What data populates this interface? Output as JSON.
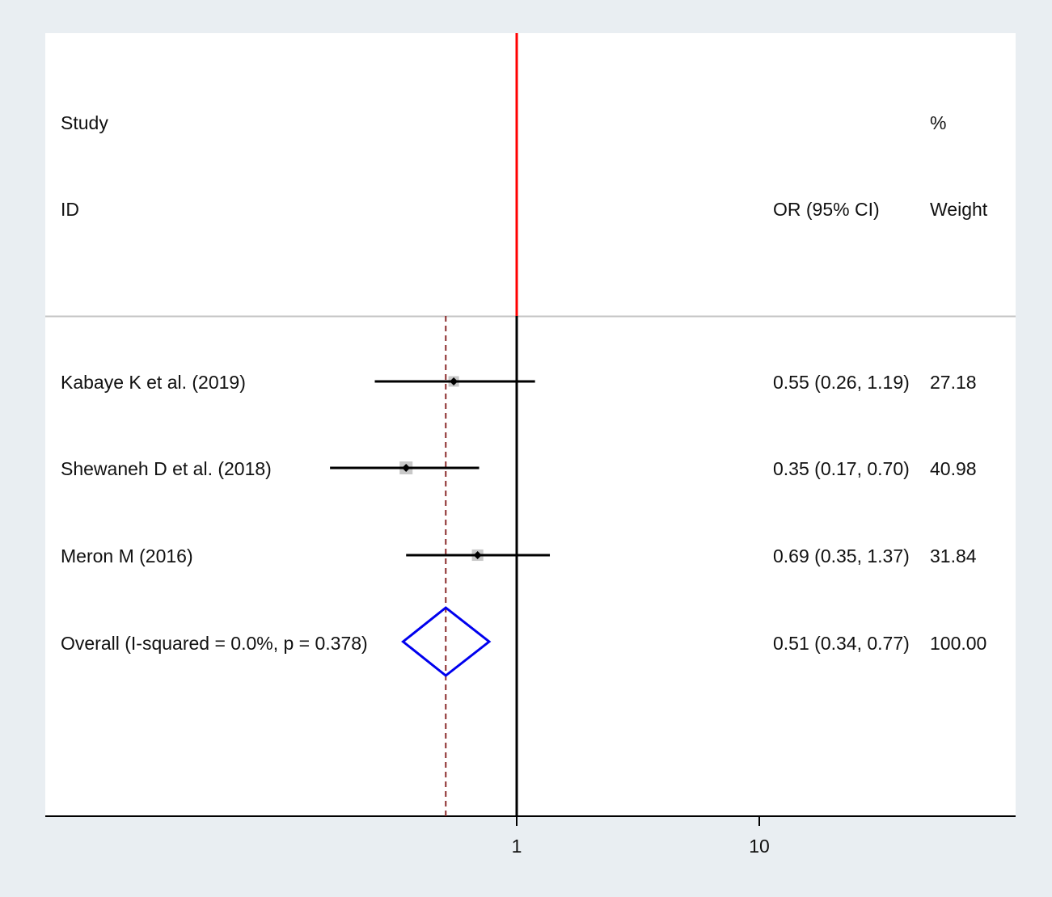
{
  "headers": {
    "study": "Study",
    "id": "ID",
    "percent": "%",
    "or_ci": "OR (95% CI)",
    "weight": "Weight"
  },
  "rows": [
    {
      "label": "Kabaye K et al. (2019)",
      "or": 0.55,
      "lo": 0.26,
      "hi": 1.19,
      "or_text": "0.55 (0.26, 1.19)",
      "weight": "27.18"
    },
    {
      "label": "Shewaneh D et al. (2018)",
      "or": 0.35,
      "lo": 0.17,
      "hi": 0.7,
      "or_text": "0.35 (0.17, 0.70)",
      "weight": "40.98"
    },
    {
      "label": "Meron M (2016)",
      "or": 0.69,
      "lo": 0.35,
      "hi": 1.37,
      "or_text": "0.69 (0.35, 1.37)",
      "weight": "31.84"
    }
  ],
  "overall": {
    "label": "Overall  (I-squared = 0.0%, p = 0.378)",
    "or": 0.51,
    "lo": 0.34,
    "hi": 0.77,
    "or_text": "0.51 (0.34, 0.77)",
    "weight": "100.00"
  },
  "ticks": [
    "1",
    "10"
  ],
  "colors": {
    "null_line": "#ff0000",
    "axis_line": "#000000",
    "overall_dashed": "#8b2b2b",
    "diamond": "#0000ee",
    "ci_line": "#000000",
    "weight_box": "#c8c8c8"
  },
  "chart_data": {
    "type": "forest",
    "x_scale": "log",
    "x_ticks": [
      1,
      10
    ],
    "null_value": 1,
    "studies": [
      {
        "name": "Kabaye K et al. (2019)",
        "or": 0.55,
        "ci": [
          0.26,
          1.19
        ],
        "weight": 27.18
      },
      {
        "name": "Shewaneh D et al. (2018)",
        "or": 0.35,
        "ci": [
          0.17,
          0.7
        ],
        "weight": 40.98
      },
      {
        "name": "Meron M (2016)",
        "or": 0.69,
        "ci": [
          0.35,
          1.37
        ],
        "weight": 31.84
      }
    ],
    "overall": {
      "name": "Overall",
      "or": 0.51,
      "ci": [
        0.34,
        0.77
      ],
      "weight": 100.0,
      "i_squared": "0.0%",
      "p": 0.378
    }
  }
}
